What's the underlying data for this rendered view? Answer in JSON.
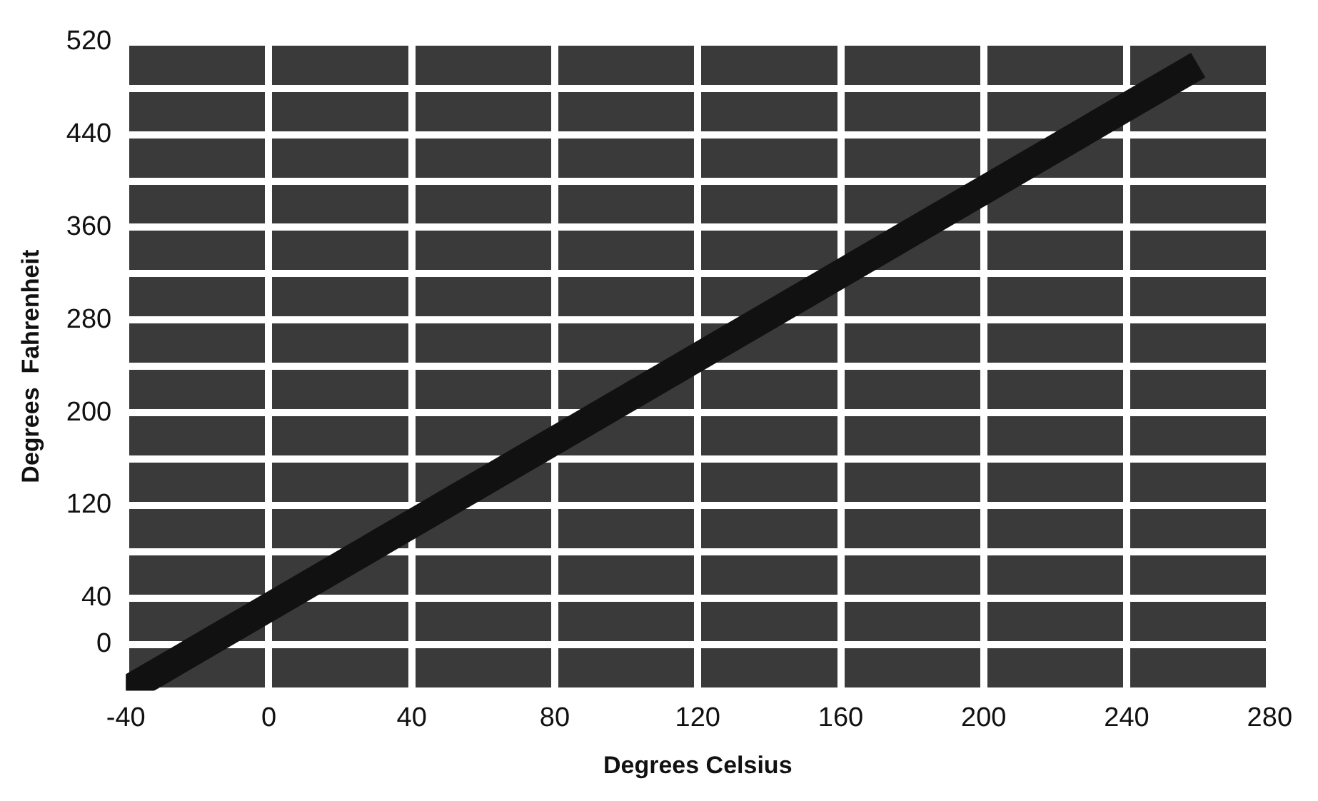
{
  "chart_data": {
    "type": "line",
    "xlabel": "Degrees Celsius",
    "ylabel": "Degrees  Fahrenheit",
    "x": [
      -40,
      260
    ],
    "series": [
      {
        "color": "#111111",
        "values": [
          -40,
          500
        ]
      }
    ],
    "xlim": [
      -40,
      280
    ],
    "xticks": [
      -40,
      0,
      40,
      80,
      120,
      160,
      200,
      240,
      280
    ],
    "ylim": [
      -40,
      520
    ],
    "yticks": [
      {
        "value": -40,
        "label": null
      },
      0,
      40,
      {
        "value": 80,
        "label": null
      },
      120,
      {
        "value": 160,
        "label": null
      },
      200,
      {
        "value": 240,
        "label": null
      },
      280,
      {
        "value": 320,
        "label": null
      },
      360,
      {
        "value": 400,
        "label": null
      },
      440,
      {
        "value": 480,
        "label": null
      },
      520
    ],
    "grid": true,
    "legend": false,
    "marker": "none",
    "line_style": "solid"
  }
}
